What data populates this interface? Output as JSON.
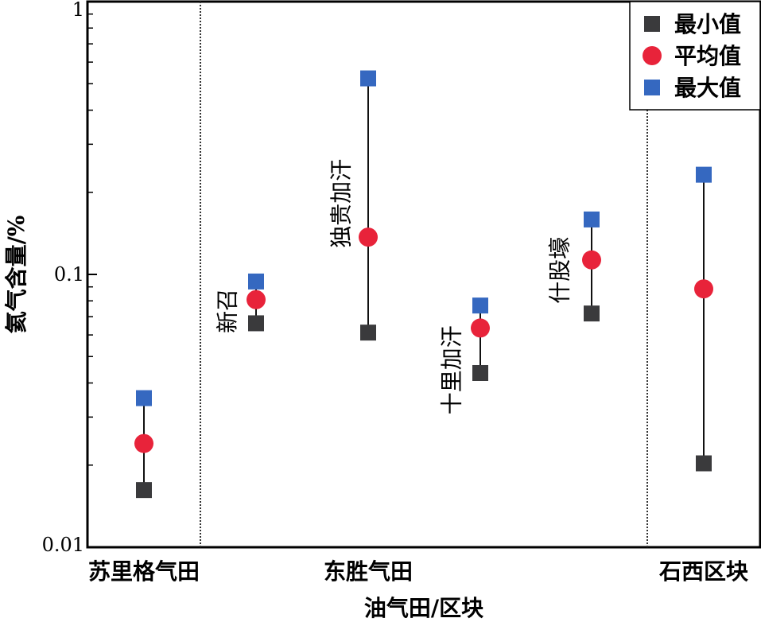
{
  "chart_data": {
    "type": "scatter",
    "xlabel": "油气田/区块",
    "ylabel": "氦气含量/%",
    "yscale": "log",
    "ylim": [
      0.01,
      1
    ],
    "yticks": [
      "1",
      "0.1",
      "0.01"
    ],
    "categories": [
      "苏里格气田",
      "东胜气田",
      "石西区块"
    ],
    "points": [
      {
        "name": "",
        "group": "苏里格气田",
        "min": 0.0162,
        "mean": 0.024,
        "max": 0.0352
      },
      {
        "name": "新召",
        "group": "东胜气田",
        "min": 0.0662,
        "mean": 0.0808,
        "max": 0.0942
      },
      {
        "name": "独贵加汗",
        "group": "东胜气田",
        "min": 0.0612,
        "mean": 0.137,
        "max": 0.523
      },
      {
        "name": "十里加汗",
        "group": "东胜气田",
        "min": 0.0435,
        "mean": 0.0636,
        "max": 0.0769
      },
      {
        "name": "什股壕",
        "group": "东胜气田",
        "min": 0.0719,
        "mean": 0.113,
        "max": 0.159
      },
      {
        "name": "",
        "group": "石西区块",
        "min": 0.0203,
        "mean": 0.0885,
        "max": 0.232
      }
    ],
    "legend": {
      "position": "top-right",
      "entries": [
        {
          "label": "最小值",
          "color": "#3a3a3c",
          "marker": "square"
        },
        {
          "label": "平均值",
          "color": "#e8233a",
          "marker": "circle"
        },
        {
          "label": "最大值",
          "color": "#3568c0",
          "marker": "square"
        }
      ]
    },
    "grid": false
  }
}
